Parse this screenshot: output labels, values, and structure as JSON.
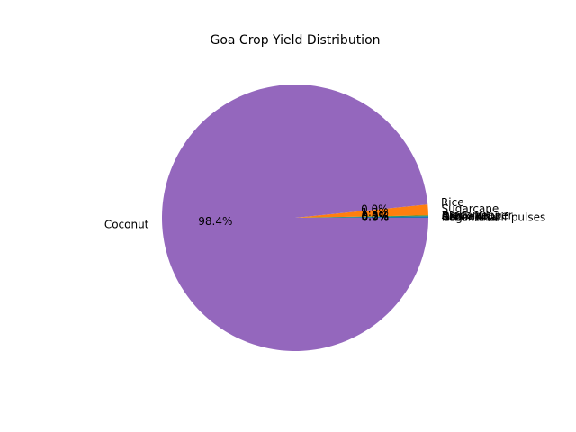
{
  "chart_data": {
    "type": "pie",
    "title": "Goa Crop Yield Distribution",
    "categories": [
      "Cashewnut",
      "Black pepper",
      "Arecanut",
      "Sugarcane",
      "Rice",
      "Coconut",
      "Ragi",
      "Other Kharif pulses",
      "Groundnut"
    ],
    "values": [
      0.2,
      0.0,
      0.1,
      1.3,
      0.0,
      98.4,
      0.0,
      0.0,
      0.0
    ],
    "pct_labels": [
      "0.2%",
      "0.0%",
      "0.1%",
      "1.3%",
      "0.0%",
      "98.4%",
      "0.0%",
      "0.0%",
      "0.0%"
    ],
    "colors": [
      "#1f77b4",
      "#ff7f0e",
      "#2ca02c",
      "#ff7f0e",
      "#8c564b",
      "#9467bd",
      "#8c564b",
      "#e377c2",
      "#7f7f7f"
    ],
    "start_angle_deg": 0,
    "direction": "counterclockwise"
  }
}
